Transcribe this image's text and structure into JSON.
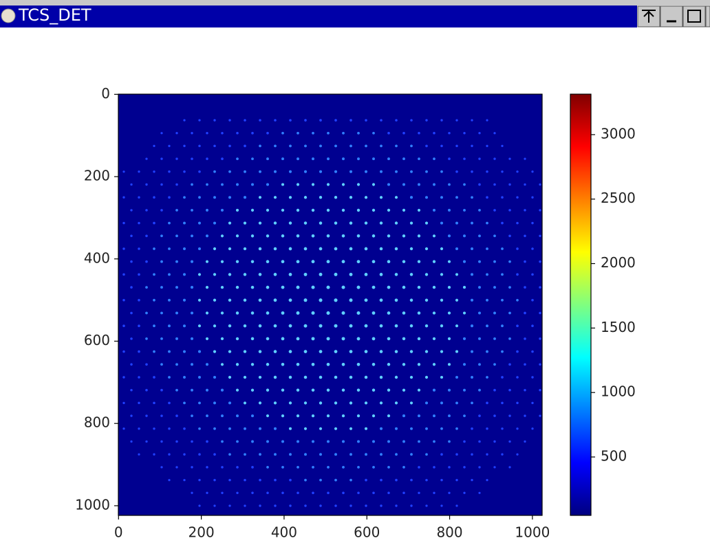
{
  "window": {
    "title": "TCS_DET"
  },
  "chart_data": {
    "type": "heatmap",
    "colormap": "jet",
    "xlim": [
      -0.5,
      1023.5
    ],
    "ylim": [
      1023.5,
      -0.5
    ],
    "xticks": [
      0,
      200,
      400,
      600,
      800,
      1000
    ],
    "yticks": [
      0,
      200,
      400,
      600,
      800,
      1000
    ],
    "clim": [
      47,
      3314
    ],
    "cticks": [
      500,
      1000,
      1500,
      2000,
      2500,
      3000
    ]
  }
}
